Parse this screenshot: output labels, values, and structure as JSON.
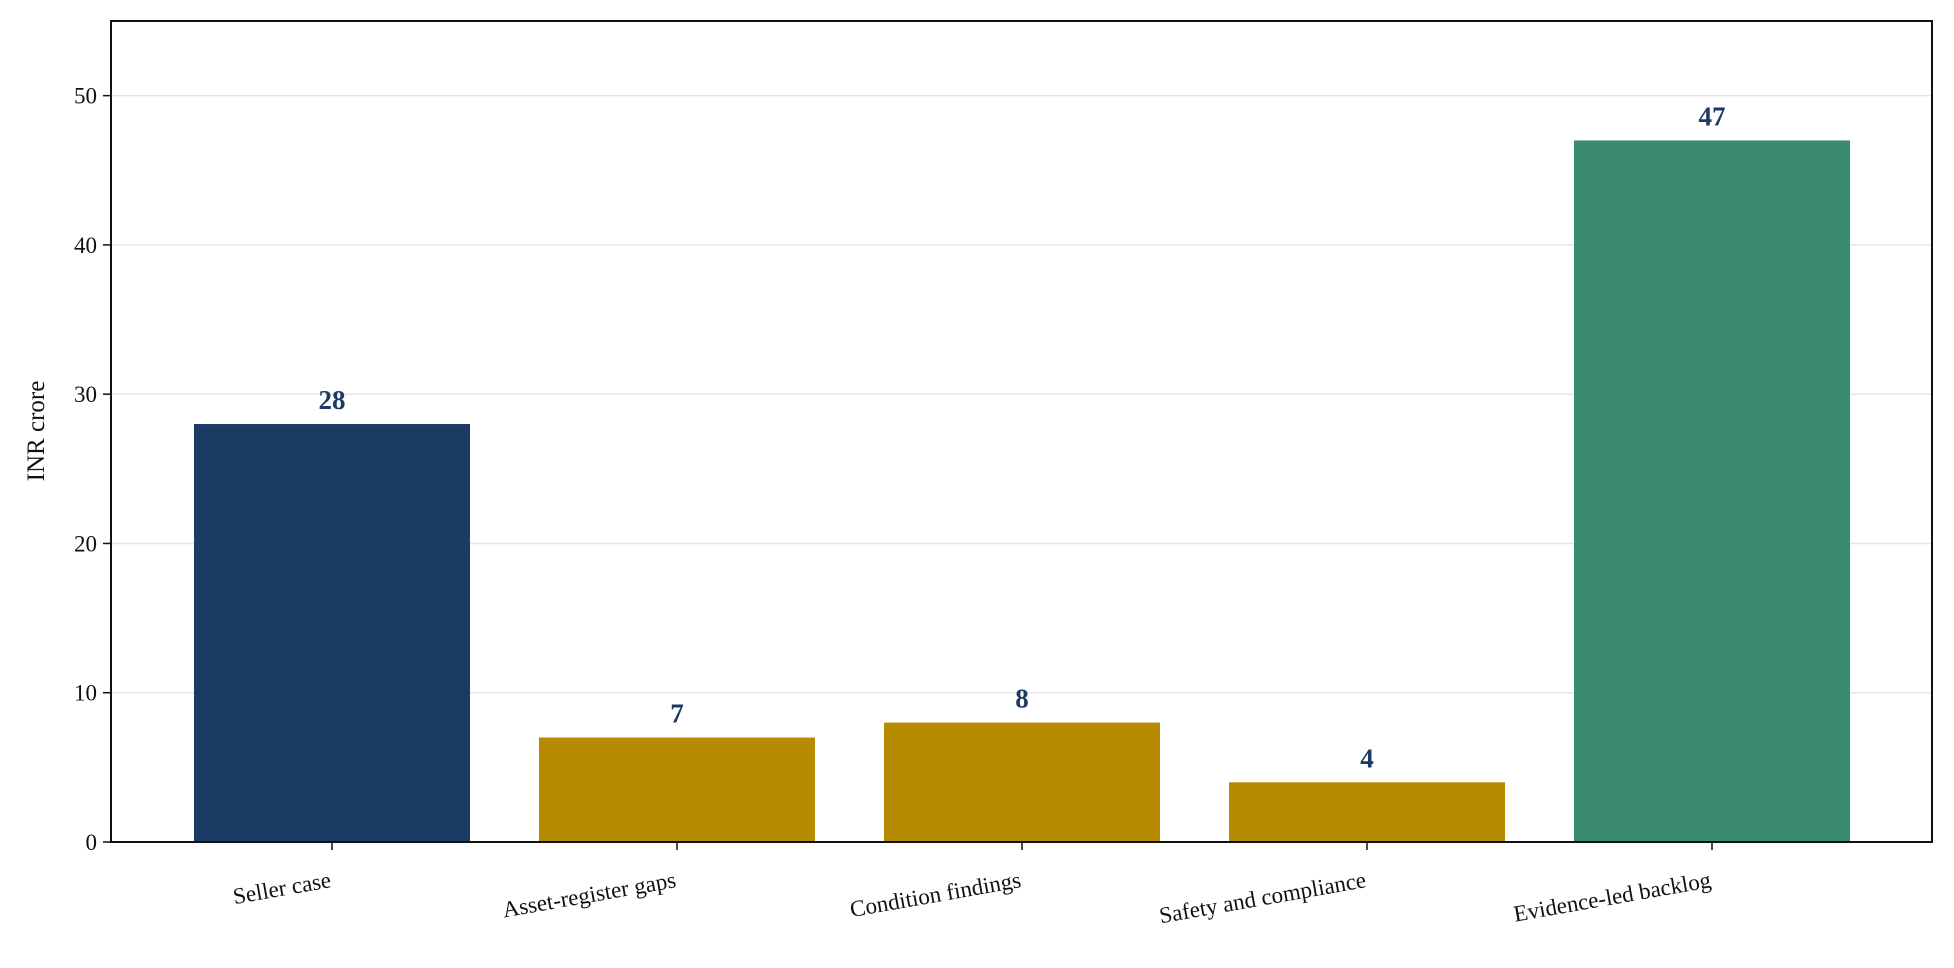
{
  "chart_data": {
    "type": "bar",
    "title": "",
    "xlabel": "",
    "ylabel": "INR crore",
    "categories": [
      "Seller case",
      "Asset-register gaps",
      "Condition findings",
      "Safety and compliance",
      "Evidence-led backlog"
    ],
    "values": [
      28,
      7,
      8,
      4,
      47
    ],
    "bar_colors": [
      "#1b3a64",
      "#b68b00",
      "#b68b00",
      "#b68b00",
      "#3b8b6e"
    ],
    "data_label_color": "#1b3a64",
    "data_labels": [
      "28",
      "7",
      "8",
      "4",
      "47"
    ],
    "ylim": [
      0,
      55
    ],
    "yticks": [
      0,
      10,
      20,
      30,
      40,
      50
    ],
    "ytick_labels": [
      "0",
      "10",
      "20",
      "30",
      "40",
      "50"
    ],
    "grid": "horizontal",
    "legend": "none"
  }
}
